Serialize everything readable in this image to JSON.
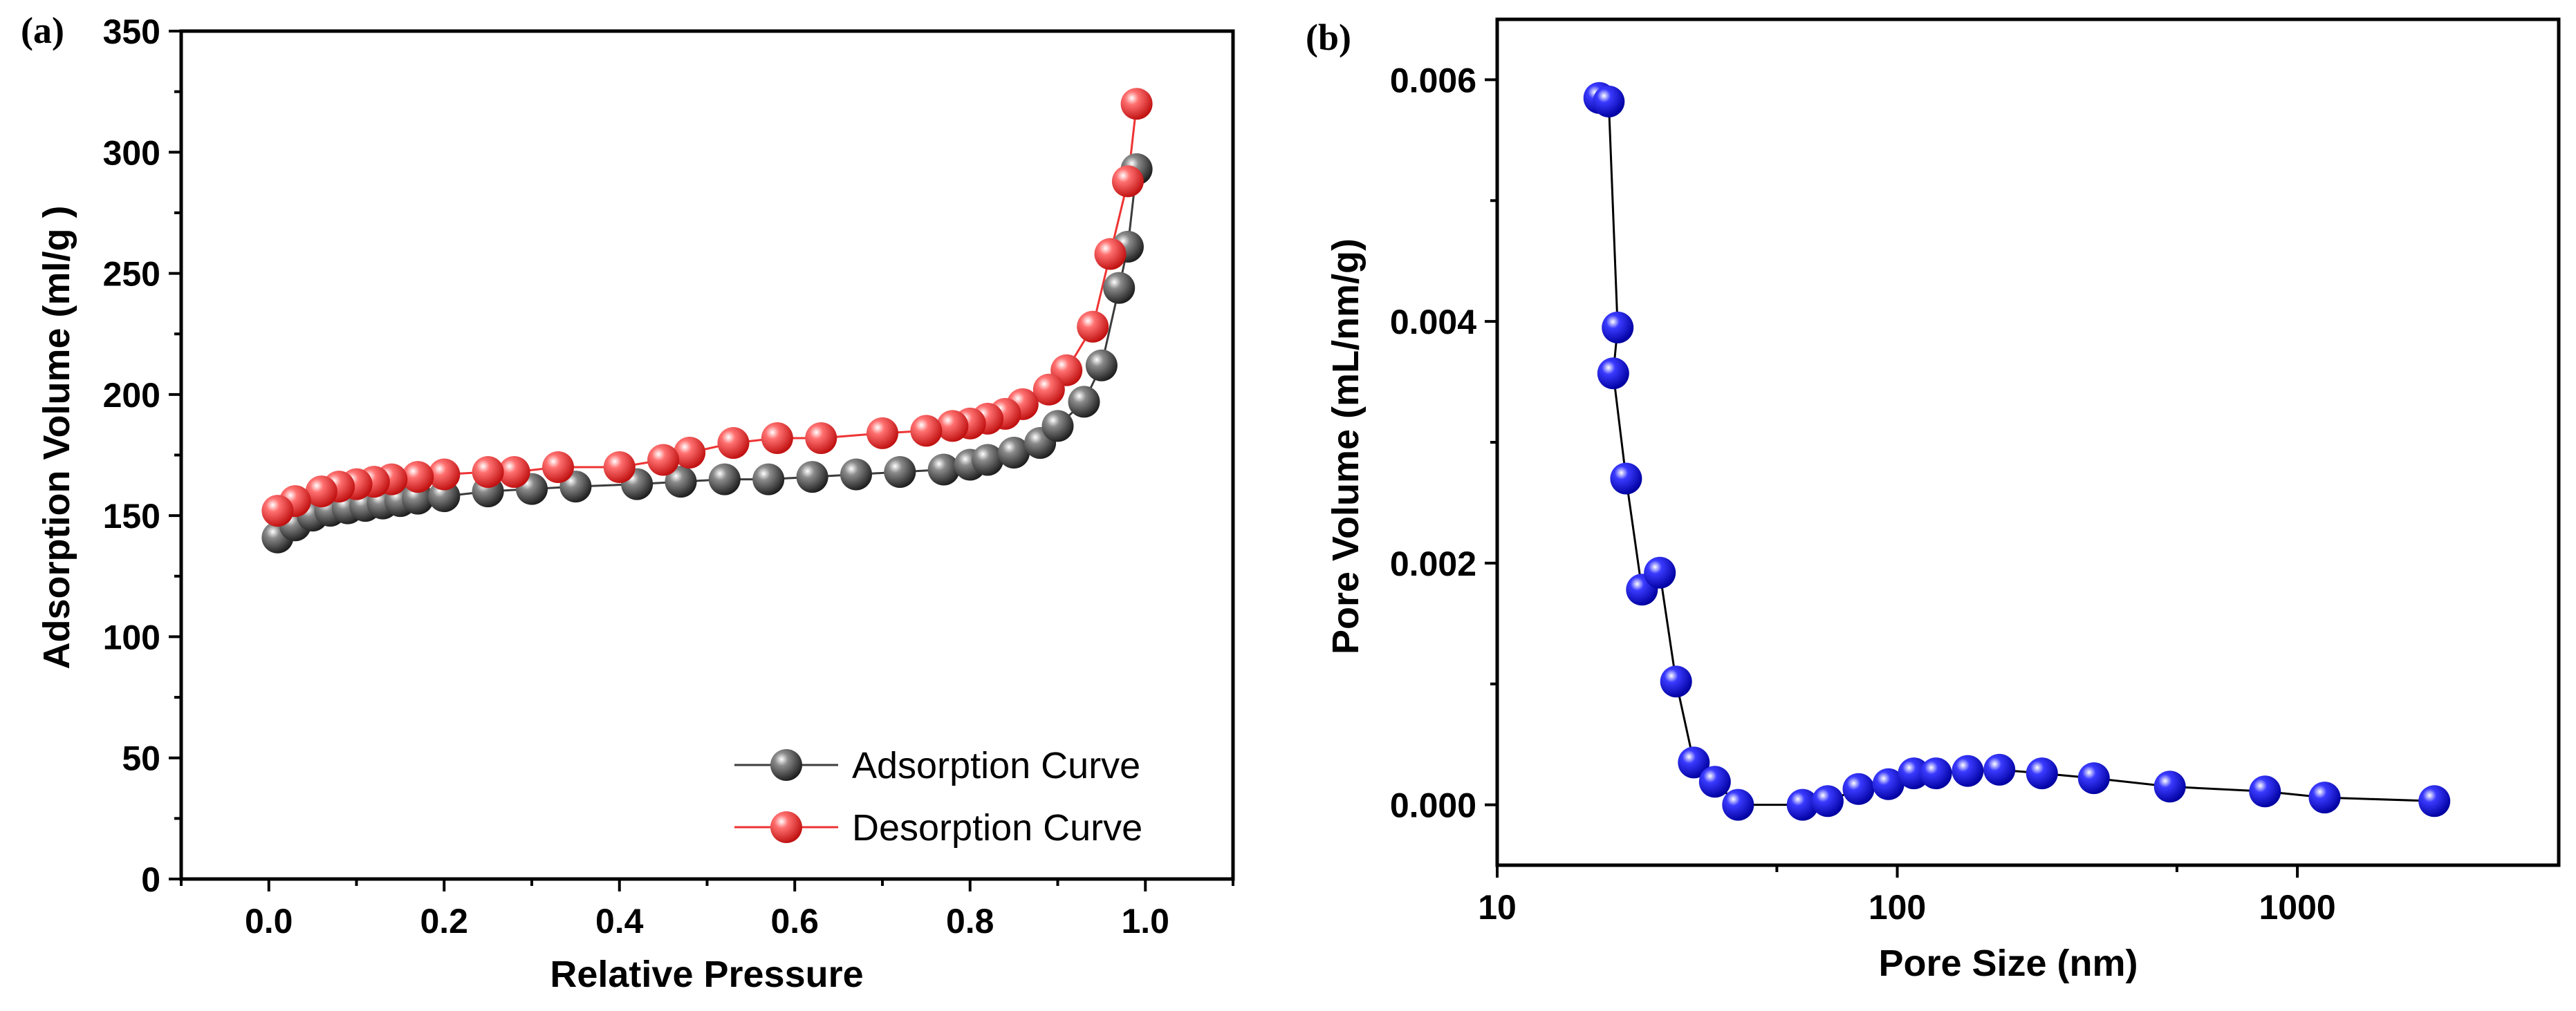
{
  "chart_data": [
    {
      "type": "scatter",
      "panel_label": "(a)",
      "xlabel": "Relative Pressure",
      "ylabel": "Adsorption Volume (ml/g )",
      "xlim": [
        -0.1,
        1.1
      ],
      "ylim": [
        0,
        350
      ],
      "xticks": [
        0.0,
        0.2,
        0.4,
        0.6,
        0.8,
        1.0
      ],
      "xtick_labels": [
        "0.0",
        "0.2",
        "0.4",
        "0.6",
        "0.8",
        "1.0"
      ],
      "yticks": [
        0,
        50,
        100,
        150,
        200,
        250,
        300,
        350
      ],
      "ytick_labels": [
        "0",
        "50",
        "100",
        "150",
        "200",
        "250",
        "300",
        "350"
      ],
      "legend_position": "bottom-right",
      "series": [
        {
          "name": "Adsorption Curve",
          "color": "#3c3c3c",
          "x": [
            0.01,
            0.03,
            0.05,
            0.07,
            0.09,
            0.11,
            0.13,
            0.15,
            0.17,
            0.2,
            0.25,
            0.3,
            0.35,
            0.42,
            0.47,
            0.52,
            0.57,
            0.62,
            0.67,
            0.72,
            0.77,
            0.8,
            0.82,
            0.85,
            0.88,
            0.9,
            0.93,
            0.95,
            0.97,
            0.98,
            0.99
          ],
          "y": [
            141,
            146,
            150,
            152,
            153,
            154,
            155,
            156,
            157,
            158,
            160,
            161,
            162,
            163,
            164,
            165,
            165,
            166,
            167,
            168,
            169,
            171,
            173,
            176,
            180,
            187,
            197,
            212,
            244,
            261,
            293
          ]
        },
        {
          "name": "Desorption Curve",
          "color": "#ee3333",
          "x": [
            0.99,
            0.98,
            0.96,
            0.94,
            0.91,
            0.89,
            0.86,
            0.84,
            0.82,
            0.8,
            0.78,
            0.75,
            0.7,
            0.63,
            0.58,
            0.53,
            0.48,
            0.45,
            0.4,
            0.33,
            0.28,
            0.25,
            0.2,
            0.17,
            0.14,
            0.12,
            0.1,
            0.08,
            0.06,
            0.03,
            0.01
          ],
          "y": [
            320,
            288,
            258,
            228,
            210,
            202,
            196,
            192,
            190,
            188,
            187,
            185,
            184,
            182,
            182,
            180,
            176,
            173,
            170,
            170,
            168,
            168,
            167,
            166,
            165,
            164,
            163,
            162,
            160,
            156,
            152
          ]
        }
      ]
    },
    {
      "type": "line",
      "panel_label": "(b)",
      "xlabel": "Pore Size (nm)",
      "ylabel": "Pore Volume (mL/nm/g)",
      "xscale": "log",
      "xlim": [
        10,
        4500
      ],
      "ylim": [
        -0.0005,
        0.0065
      ],
      "xticks": [
        10,
        100,
        1000
      ],
      "xtick_labels": [
        "10",
        "100",
        "1000"
      ],
      "yticks": [
        0.0,
        0.002,
        0.004,
        0.006
      ],
      "ytick_labels": [
        "0.000",
        "0.002",
        "0.004",
        "0.006"
      ],
      "series": [
        {
          "name": "Pore Volume",
          "color": "#1414e6",
          "x": [
            18,
            19,
            20,
            19.5,
            21,
            23,
            25.5,
            28,
            31,
            35,
            40,
            58,
            67,
            80,
            95,
            110,
            125,
            150,
            180,
            230,
            310,
            480,
            830,
            1170,
            2200
          ],
          "y": [
            0.00585,
            0.00582,
            0.00395,
            0.00357,
            0.0027,
            0.00178,
            0.00192,
            0.00102,
            0.00035,
            0.00019,
            0.0,
            0.0,
            3e-05,
            0.00013,
            0.00017,
            0.00026,
            0.00026,
            0.00028,
            0.00029,
            0.00026,
            0.00022,
            0.00015,
            0.00011,
            6e-05,
            3e-05
          ]
        }
      ]
    }
  ],
  "legend": {
    "adsorption_label": "Adsorption Curve",
    "desorption_label": "Desorption Curve"
  }
}
